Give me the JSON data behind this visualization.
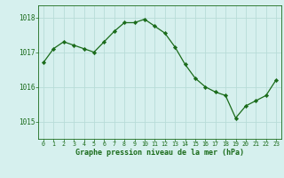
{
  "x": [
    0,
    1,
    2,
    3,
    4,
    5,
    6,
    7,
    8,
    9,
    10,
    11,
    12,
    13,
    14,
    15,
    16,
    17,
    18,
    19,
    20,
    21,
    22,
    23
  ],
  "y": [
    1016.7,
    1017.1,
    1017.3,
    1017.2,
    1017.1,
    1017.0,
    1017.3,
    1017.6,
    1017.85,
    1017.85,
    1017.95,
    1017.75,
    1017.55,
    1017.15,
    1016.65,
    1016.25,
    1016.0,
    1015.85,
    1015.75,
    1015.1,
    1015.45,
    1015.6,
    1015.75,
    1016.2
  ],
  "line_color": "#1a6b1a",
  "marker_color": "#1a6b1a",
  "bg_color": "#d6f0ee",
  "grid_color": "#b8dcd8",
  "xlabel": "Graphe pression niveau de la mer (hPa)",
  "xlabel_color": "#1a6b1a",
  "tick_color": "#1a6b1a",
  "yticks": [
    1015,
    1016,
    1017,
    1018
  ],
  "ylim": [
    1014.5,
    1018.35
  ],
  "xlim": [
    -0.5,
    23.5
  ]
}
